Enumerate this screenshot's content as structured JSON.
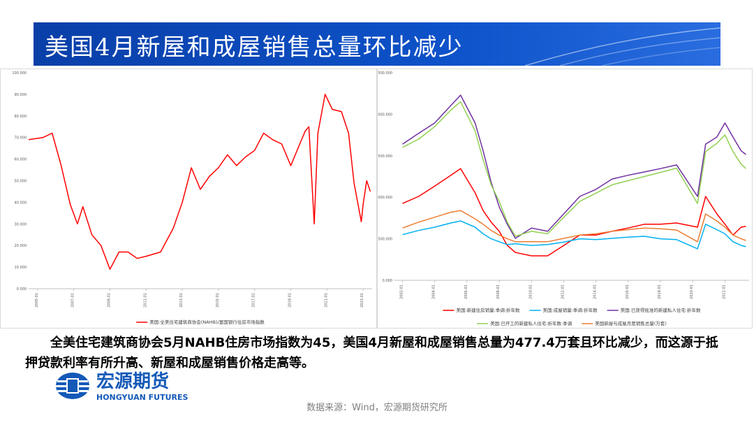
{
  "header": {
    "title": "美国4月新屋和成屋销售总量环比减少"
  },
  "chart_data": [
    {
      "type": "line",
      "x": [
        2004.5,
        2005.3,
        2005.8,
        2006.3,
        2006.8,
        2007.2,
        2007.5,
        2008,
        2008.5,
        2009,
        2009.5,
        2010,
        2010.5,
        2011,
        2011.8,
        2012.5,
        2013,
        2013.5,
        2014,
        2014.5,
        2015,
        2015.5,
        2016,
        2016.5,
        2017,
        2017.5,
        2018,
        2018.5,
        2019,
        2019.5,
        2019.8,
        2020,
        2020.3,
        2020.5,
        2020.9,
        2021.3,
        2021.8,
        2022.2,
        2022.5,
        2022.9,
        2023,
        2023.2,
        2023.4
      ],
      "series": [
        {
          "name": "美国:全美住宅建筑商协会(NAHB)/富国银行住房市场指数",
          "color": "#ff0000",
          "values": [
            69,
            70,
            72,
            57,
            39,
            30,
            38,
            25,
            20,
            9,
            17,
            17,
            14,
            15,
            17,
            28,
            40,
            56,
            46,
            52,
            56,
            62,
            57,
            61,
            64,
            72,
            69,
            67,
            57,
            67,
            73,
            75,
            30,
            72,
            90,
            83,
            82,
            72,
            49,
            31,
            39,
            50,
            45
          ]
        }
      ],
      "xlim": [
        2004.5,
        2023.5
      ],
      "xticks": [
        {
          "value": 2005,
          "label": "2005-01"
        },
        {
          "value": 2007,
          "label": "2007-01"
        },
        {
          "value": 2009,
          "label": "2009-01"
        },
        {
          "value": 2011,
          "label": "2011-01"
        },
        {
          "value": 2013,
          "label": "2013-01"
        },
        {
          "value": 2015,
          "label": "2015-01"
        },
        {
          "value": 2017,
          "label": "2017-01"
        },
        {
          "value": 2019,
          "label": "2019-01"
        },
        {
          "value": 2021,
          "label": "2021-01"
        },
        {
          "value": 2023,
          "label": "2023-01"
        }
      ],
      "ylim": [
        0,
        100
      ],
      "yticks": [
        {
          "value": 0,
          "label": "0.000"
        },
        {
          "value": 10,
          "label": "10.000"
        },
        {
          "value": 20,
          "label": "20.000"
        },
        {
          "value": 30,
          "label": "30.000"
        },
        {
          "value": 40,
          "label": "40.000"
        },
        {
          "value": 50,
          "label": "50.000"
        },
        {
          "value": 60,
          "label": "60.000"
        },
        {
          "value": 70,
          "label": "70.000"
        },
        {
          "value": 80,
          "label": "80.000"
        },
        {
          "value": 90,
          "label": "90.000"
        },
        {
          "value": 100,
          "label": "100.000"
        }
      ],
      "grid": false,
      "legend": "bottom"
    },
    {
      "type": "line",
      "x": [
        2002,
        2003,
        2004,
        2005,
        2005.6,
        2006.5,
        2007,
        2007.5,
        2008,
        2008.5,
        2009,
        2010,
        2011,
        2012,
        2013,
        2014,
        2015,
        2016,
        2017,
        2018,
        2019,
        2020.3,
        2020.8,
        2021.5,
        2022,
        2022.5,
        2023,
        2023.3
      ],
      "series": [
        {
          "name": "美国:新建住房销量:季调:折年数",
          "color": "#ff0000",
          "values": [
            925,
            1010,
            1135,
            1265,
            1345,
            1055,
            840,
            700,
            590,
            420,
            335,
            295,
            295,
            420,
            545,
            545,
            590,
            630,
            675,
            675,
            690,
            640,
            1010,
            800,
            675,
            545,
            640,
            650
          ]
        },
        {
          "name": "美国:成屋销量:季调:折年数",
          "color": "#00b0f0",
          "values": [
            550,
            600,
            640,
            690,
            715,
            640,
            560,
            500,
            465,
            430,
            440,
            420,
            430,
            460,
            500,
            490,
            505,
            520,
            530,
            500,
            490,
            380,
            675,
            610,
            560,
            465,
            420,
            405
          ]
        },
        {
          "name": "美国:已获得批准的新建私人住宅:折年数",
          "color": "#7030a0",
          "values": [
            1640,
            1770,
            1895,
            2105,
            2230,
            1895,
            1560,
            1180,
            885,
            675,
            505,
            630,
            590,
            800,
            1010,
            1095,
            1220,
            1265,
            1305,
            1345,
            1390,
            1010,
            1640,
            1725,
            1895,
            1725,
            1560,
            1515
          ]
        },
        {
          "name": "美国:已开工的新建私人住宅:折年数:季调",
          "color": "#92d050",
          "values": [
            1600,
            1700,
            1850,
            2050,
            2150,
            1800,
            1450,
            1150,
            950,
            700,
            530,
            590,
            560,
            760,
            950,
            1050,
            1150,
            1200,
            1250,
            1300,
            1350,
            925,
            1550,
            1650,
            1750,
            1550,
            1400,
            1345
          ]
        },
        {
          "name": "美国新屋与成屋月度销售总量(万套)",
          "color": "#ed7d31",
          "values": [
            630,
            700,
            760,
            820,
            840,
            740,
            675,
            600,
            545,
            500,
            465,
            465,
            465,
            505,
            545,
            560,
            590,
            610,
            630,
            620,
            605,
            465,
            800,
            715,
            640,
            545,
            500,
            480
          ]
        }
      ],
      "xlim": [
        2001.5,
        2023.5
      ],
      "xticks": [
        {
          "value": 2002,
          "label": "2002-01"
        },
        {
          "value": 2004,
          "label": "2004-01"
        },
        {
          "value": 2006,
          "label": "2006-01"
        },
        {
          "value": 2008,
          "label": "2008-01"
        },
        {
          "value": 2010,
          "label": "2010-01"
        },
        {
          "value": 2012,
          "label": "2012-01"
        },
        {
          "value": 2014,
          "label": "2014-01"
        },
        {
          "value": 2016,
          "label": "2016-01"
        },
        {
          "value": 2018,
          "label": "2018-01"
        },
        {
          "value": 2020,
          "label": "2020-01"
        },
        {
          "value": 2022,
          "label": "2022-01"
        }
      ],
      "ylim": [
        0,
        2500
      ],
      "yticks": [
        {
          "value": 0,
          "label": "0.000"
        },
        {
          "value": 500,
          "label": "500.000"
        },
        {
          "value": 1000,
          "label": "1000.000"
        },
        {
          "value": 1500,
          "label": "1500.000"
        },
        {
          "value": 2000,
          "label": "2000.000"
        },
        {
          "value": 2500,
          "label": "2500.000"
        }
      ],
      "grid": false,
      "legend": "bottom"
    }
  ],
  "body_text": "全美住宅建筑商协会5月NAHB住房市场指数为45，美国4月新屋和成屋销售总量为477.4万套且环比减少，而这源于抵押贷款利率有所升高、新屋和成屋销售价格走高等。",
  "logo": {
    "name_cn": "宏源期货",
    "name_en": "HONGYUAN FUTURES"
  },
  "source": "数据来源：Wind，宏源期货研究所"
}
